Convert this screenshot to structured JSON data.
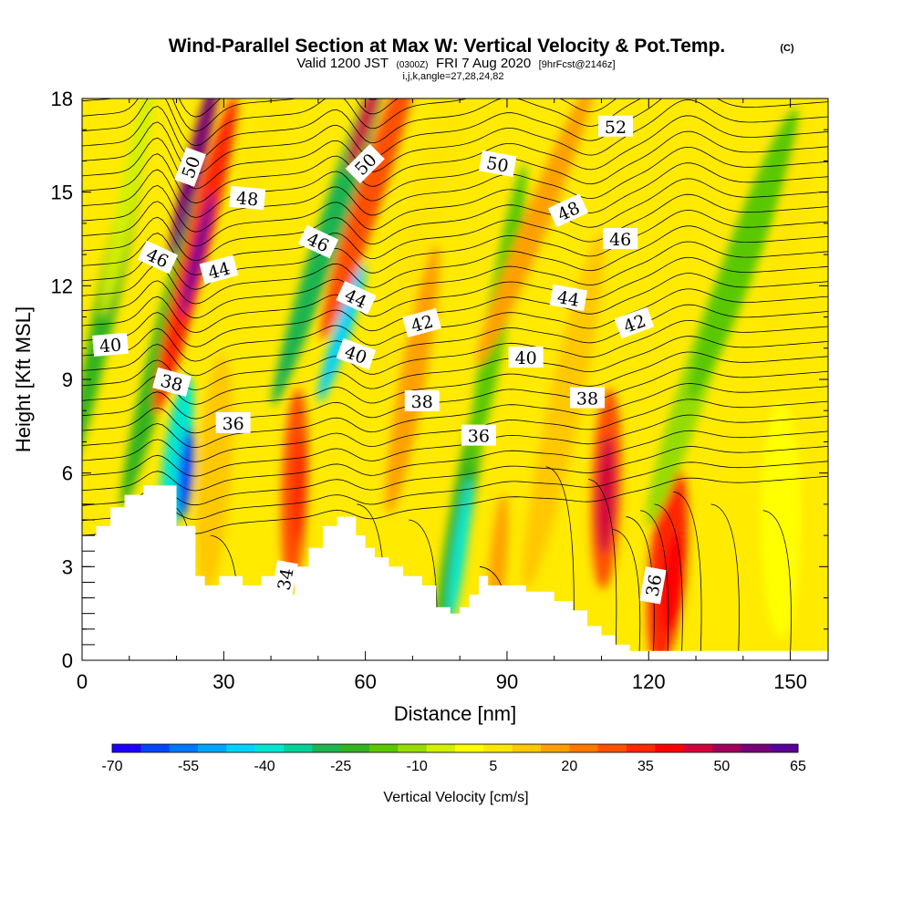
{
  "chart_data": {
    "type": "contour",
    "title": "Wind-Parallel Section at Max W: Vertical Velocity & Pot.Temp.",
    "title_suffix": "(C)",
    "subtitle_valid": "Valid 1200 JST",
    "subtitle_utc": "(0300Z)",
    "subtitle_date": "FRI 7 Aug 2020",
    "subtitle_fcst": "[9hrFcst@2146z]",
    "subtitle_indices": "i,j,k,angle=27,28,24,82",
    "xlabel": "Distance [nm]",
    "ylabel": "Height [Kft MSL]",
    "xlim": [
      0,
      158
    ],
    "ylim": [
      0,
      18
    ],
    "x_ticks": [
      "0",
      "30",
      "60",
      "90",
      "120",
      "150"
    ],
    "y_ticks": [
      "0",
      "3",
      "6",
      "9",
      "12",
      "15",
      "18"
    ],
    "colorbar": {
      "label": "Vertical Velocity [cm/s]",
      "range": [
        -70,
        65
      ],
      "tick_labels": [
        "-70",
        "-55",
        "-40",
        "-25",
        "-10",
        "5",
        "20",
        "35",
        "50",
        "65"
      ],
      "colors": [
        "#1e00ff",
        "#0046ff",
        "#0078ff",
        "#00a6ff",
        "#00d2ff",
        "#00e6d2",
        "#00d29a",
        "#1eb450",
        "#32b41e",
        "#5ac800",
        "#96dc00",
        "#d2f000",
        "#ffff00",
        "#ffe600",
        "#ffc800",
        "#ffa000",
        "#ff7800",
        "#ff5000",
        "#ff2800",
        "#ff0000",
        "#d2003c",
        "#a0005a",
        "#780078",
        "#5a0096"
      ]
    },
    "contour_variable": "Potential temperature (C)",
    "contour_labels": [
      {
        "text": "50",
        "x": 23,
        "y": 15.8,
        "angle": -70
      },
      {
        "text": "48",
        "x": 35,
        "y": 14.8,
        "angle": 5
      },
      {
        "text": "46",
        "x": 16,
        "y": 12.9,
        "angle": 25
      },
      {
        "text": "44",
        "x": 29,
        "y": 12.5,
        "angle": -15
      },
      {
        "text": "40",
        "x": 6,
        "y": 10.1,
        "angle": -5
      },
      {
        "text": "38",
        "x": 19,
        "y": 8.9,
        "angle": 15
      },
      {
        "text": "36",
        "x": 32,
        "y": 7.6,
        "angle": 0
      },
      {
        "text": "34",
        "x": 43,
        "y": 2.6,
        "angle": -80
      },
      {
        "text": "46",
        "x": 50,
        "y": 13.4,
        "angle": 25
      },
      {
        "text": "50",
        "x": 60,
        "y": 15.9,
        "angle": -45
      },
      {
        "text": "44",
        "x": 58,
        "y": 11.6,
        "angle": 25
      },
      {
        "text": "40",
        "x": 58,
        "y": 9.8,
        "angle": 20
      },
      {
        "text": "42",
        "x": 72,
        "y": 10.8,
        "angle": -15
      },
      {
        "text": "38",
        "x": 72,
        "y": 8.3,
        "angle": 0
      },
      {
        "text": "36",
        "x": 84,
        "y": 7.2,
        "angle": 0
      },
      {
        "text": "50",
        "x": 88,
        "y": 15.9,
        "angle": 10
      },
      {
        "text": "40",
        "x": 94,
        "y": 9.7,
        "angle": 0
      },
      {
        "text": "48",
        "x": 103,
        "y": 14.4,
        "angle": -25
      },
      {
        "text": "44",
        "x": 103,
        "y": 11.6,
        "angle": 10
      },
      {
        "text": "38",
        "x": 107,
        "y": 8.4,
        "angle": 0
      },
      {
        "text": "52",
        "x": 113,
        "y": 17.1,
        "angle": 0
      },
      {
        "text": "46",
        "x": 114,
        "y": 13.5,
        "angle": 0
      },
      {
        "text": "42",
        "x": 117,
        "y": 10.8,
        "angle": -20
      },
      {
        "text": "36",
        "x": 121,
        "y": 2.4,
        "angle": -80
      }
    ],
    "velocity_features": [
      {
        "x": 23,
        "y": 14.5,
        "value": 60
      },
      {
        "x": 56,
        "y": 12.0,
        "value": -45
      },
      {
        "x": 60,
        "y": 16.0,
        "value": 40
      },
      {
        "x": 22,
        "y": 6.5,
        "value": -55
      },
      {
        "x": 110,
        "y": 5.5,
        "value": 45
      }
    ],
    "terrain_profile": {
      "x": [
        0,
        3,
        3,
        6,
        6,
        9,
        9,
        13,
        13,
        20,
        20,
        24,
        24,
        26,
        26,
        29,
        29,
        34,
        34,
        38,
        38,
        41,
        41,
        45,
        45,
        48,
        48,
        51,
        51,
        54,
        54,
        58,
        58,
        60,
        60,
        62,
        62,
        65,
        65,
        68,
        68,
        72,
        72,
        75,
        75,
        78,
        78,
        80,
        80,
        82,
        82,
        84,
        84,
        86,
        86,
        94,
        94,
        100,
        100,
        104,
        104,
        107,
        107,
        110,
        110,
        113,
        113,
        116,
        116,
        120,
        120,
        158
      ],
      "y": [
        4.0,
        4.0,
        4.3,
        4.3,
        4.9,
        4.9,
        5.3,
        5.3,
        5.6,
        5.6,
        4.3,
        4.3,
        2.7,
        2.7,
        2.4,
        2.4,
        2.7,
        2.7,
        2.4,
        2.4,
        2.7,
        2.7,
        2.1,
        2.1,
        3.0,
        3.0,
        3.6,
        3.6,
        4.3,
        4.3,
        4.6,
        4.6,
        4.0,
        4.0,
        3.6,
        3.6,
        3.3,
        3.3,
        3.0,
        3.0,
        2.7,
        2.7,
        2.4,
        2.4,
        1.7,
        1.7,
        1.5,
        1.5,
        1.7,
        1.7,
        2.1,
        2.1,
        2.7,
        2.7,
        2.4,
        2.4,
        2.2,
        2.2,
        1.9,
        1.9,
        1.6,
        1.6,
        1.1,
        1.1,
        0.8,
        0.8,
        0.5,
        0.5,
        0.3,
        0.3,
        0.3,
        0.3
      ]
    }
  }
}
